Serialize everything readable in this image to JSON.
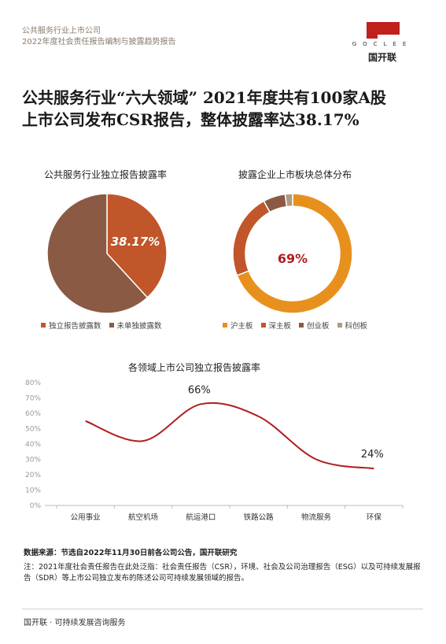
{
  "header": {
    "line1": "公共服务行业上市公司",
    "line2": "2022年度社会责任报告编制与披露趋势报告"
  },
  "logo": {
    "wordmark": "GOCLEE",
    "cn_name": "国开联",
    "color": "#c0201e"
  },
  "title": {
    "line1": "公共服务行业“六大领域” 2021年度共有100家A股",
    "line2": "上市公司发布CSR报告，整体披露率达38.17%"
  },
  "chart_data": [
    {
      "type": "pie",
      "title": "公共服务行业独立报告披露率",
      "categories": [
        "独立报告披露数",
        "未单独披露数"
      ],
      "values": [
        38.17,
        61.83
      ],
      "colors": [
        "#c0562a",
        "#8a5a44"
      ],
      "data_labels": [
        "38.17%"
      ],
      "legend": "bottom"
    },
    {
      "type": "pie",
      "title": "披露企业上市板块总体分布",
      "categories": [
        "沪主板",
        "深主板",
        "创业板",
        "科创板"
      ],
      "values": [
        69,
        23,
        6,
        2
      ],
      "colors": [
        "#e8901e",
        "#c0562a",
        "#8a5a44",
        "#b09a80"
      ],
      "data_labels": [
        "69%"
      ],
      "legend": "bottom"
    },
    {
      "type": "line",
      "title": "各领域上市公司独立报告披露率",
      "categories": [
        "公用事业",
        "航空机场",
        "航运港口",
        "铁路公路",
        "物流服务",
        "环保"
      ],
      "series": [
        {
          "values": [
            55,
            42,
            66,
            58,
            30,
            24
          ],
          "color": "#b01e1e"
        }
      ],
      "data_labels": [
        "66%",
        "24%"
      ],
      "yticks": [
        "0%",
        "10%",
        "20%",
        "30%",
        "40%",
        "50%",
        "60%",
        "70%",
        "80%"
      ],
      "ylim": [
        0,
        80
      ],
      "grid": false
    }
  ],
  "notes": {
    "source": "数据来源：节选自2022年11月30日前各公司公告，国开联研究",
    "annotation": "注：2021年度社会责任报告在此处泛指：社会责任报告（CSR），环境、社会及公司治理报告（ESG）以及可持续发展报告（SDR）等上市公司独立发布的陈述公司可持续发展领域的报告。"
  },
  "footer": "国开联 · 可持续发展咨询服务"
}
